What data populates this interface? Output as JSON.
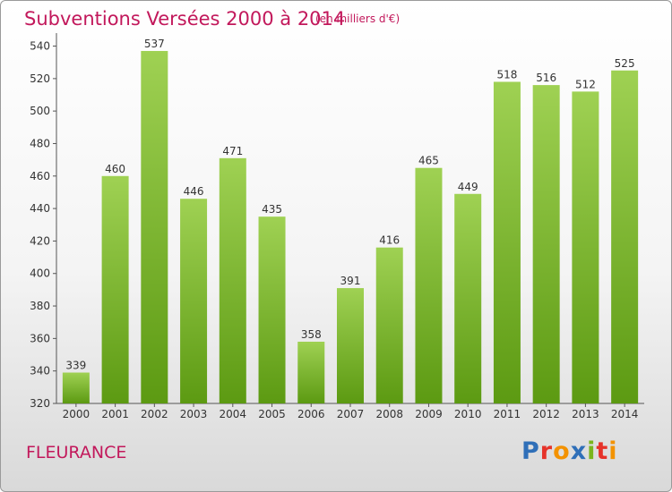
{
  "header": {
    "title": "Subventions Versées 2000 à 2014",
    "unit": "(en milliers d'€)"
  },
  "footer": {
    "town": "FLEURANCE",
    "logo_text": "Proxiti",
    "logo_colors": [
      "#2f6fb8",
      "#e6332a",
      "#f39200",
      "#2f6fb8",
      "#7ab51d",
      "#e6332a",
      "#f39200"
    ]
  },
  "colors": {
    "bar_top": "#9fd153",
    "bar_bottom": "#5c9a12",
    "text_accent": "#c2185b"
  },
  "chart_data": {
    "type": "bar",
    "title": "Subventions Versées 2000 à 2014",
    "subtitle": "(en milliers d'€)",
    "categories": [
      "2000",
      "2001",
      "2002",
      "2003",
      "2004",
      "2005",
      "2006",
      "2007",
      "2008",
      "2009",
      "2010",
      "2011",
      "2012",
      "2013",
      "2014"
    ],
    "values": [
      339,
      460,
      537,
      446,
      471,
      435,
      358,
      391,
      416,
      465,
      449,
      518,
      516,
      512,
      525
    ],
    "yticks": [
      320,
      340,
      360,
      380,
      400,
      420,
      440,
      460,
      480,
      500,
      520,
      540
    ],
    "ylim": [
      320,
      548
    ],
    "grid": false,
    "legend": "none"
  }
}
